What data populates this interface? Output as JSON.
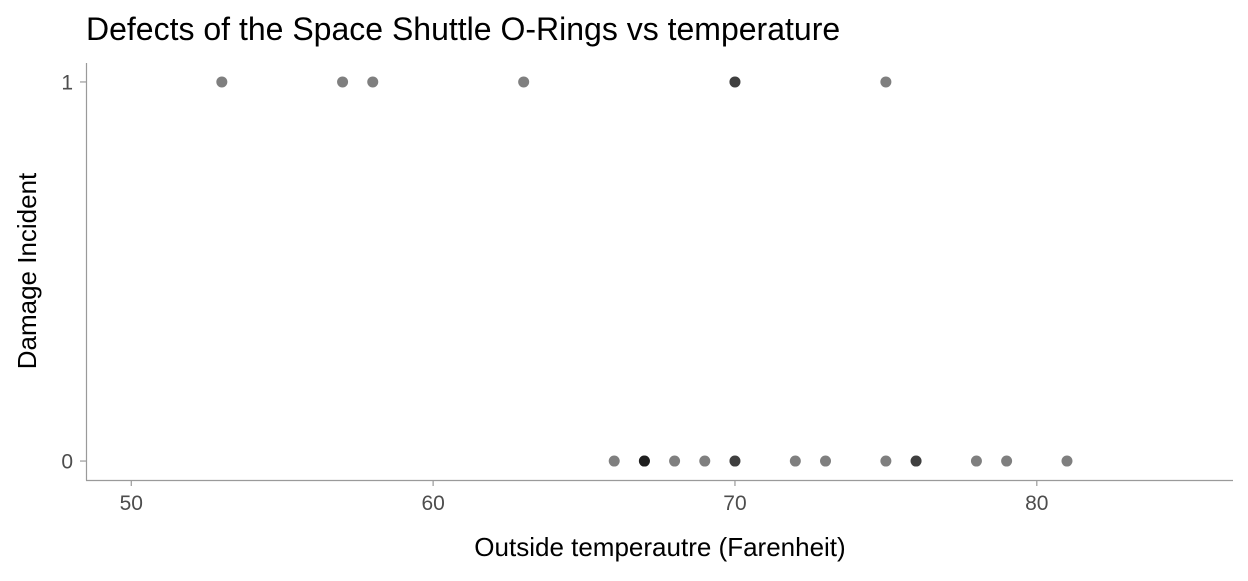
{
  "chart_data": {
    "type": "scatter",
    "title": "Defects of the Space Shuttle O-Rings vs temperature",
    "xlabel": "Outside temperautre (Farenheit)",
    "ylabel": "Damage Incident",
    "xlim": [
      48.5,
      86.5
    ],
    "ylim": [
      -0.05,
      1.05
    ],
    "xticks": [
      50,
      60,
      70,
      80
    ],
    "xtick_labels": [
      "50",
      "60",
      "70",
      "80"
    ],
    "yticks": [
      0,
      1
    ],
    "ytick_labels": [
      "0",
      "1"
    ],
    "grid": false,
    "legend": "none",
    "point_color": "#000000",
    "point_opacity": 0.5,
    "points": [
      {
        "x": 53,
        "y": 1
      },
      {
        "x": 57,
        "y": 1
      },
      {
        "x": 58,
        "y": 1
      },
      {
        "x": 63,
        "y": 1
      },
      {
        "x": 70,
        "y": 1
      },
      {
        "x": 70,
        "y": 1
      },
      {
        "x": 75,
        "y": 1
      },
      {
        "x": 66,
        "y": 0
      },
      {
        "x": 67,
        "y": 0
      },
      {
        "x": 67,
        "y": 0
      },
      {
        "x": 67,
        "y": 0
      },
      {
        "x": 68,
        "y": 0
      },
      {
        "x": 69,
        "y": 0
      },
      {
        "x": 70,
        "y": 0
      },
      {
        "x": 70,
        "y": 0
      },
      {
        "x": 72,
        "y": 0
      },
      {
        "x": 73,
        "y": 0
      },
      {
        "x": 75,
        "y": 0
      },
      {
        "x": 76,
        "y": 0
      },
      {
        "x": 76,
        "y": 0
      },
      {
        "x": 78,
        "y": 0
      },
      {
        "x": 79,
        "y": 0
      },
      {
        "x": 81,
        "y": 0
      }
    ]
  }
}
